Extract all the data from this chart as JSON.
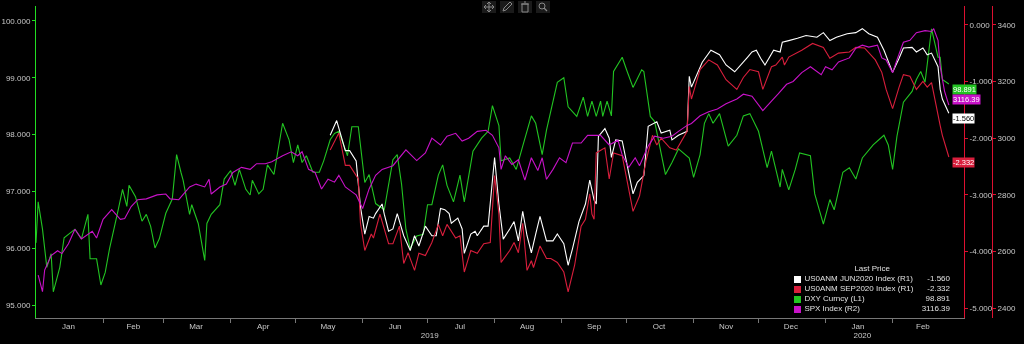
{
  "chart_data": {
    "type": "line",
    "legend": "bottom right",
    "legend_title": "Last Price",
    "grid": false,
    "xlim": [
      "2019-01-01",
      "2020-03-05"
    ],
    "xticks": [
      {
        "value": "2019-01-16",
        "label": "Jan"
      },
      {
        "value": "2019-02-01",
        "label": null
      },
      {
        "value": "2019-02-15",
        "label": "Feb"
      },
      {
        "value": "2019-03-01",
        "label": null
      },
      {
        "value": "2019-03-16",
        "label": "Mar"
      },
      {
        "value": "2019-04-01",
        "label": null
      },
      {
        "value": "2019-04-16",
        "label": "Apr"
      },
      {
        "value": "2019-05-01",
        "label": null
      },
      {
        "value": "2019-05-16",
        "label": "May"
      },
      {
        "value": "2019-06-01",
        "label": null
      },
      {
        "value": "2019-06-16",
        "label": "Jun"
      },
      {
        "value": "2019-07-01",
        "label": null
      },
      {
        "value": "2019-07-16",
        "label": "Jul"
      },
      {
        "value": "2019-08-01",
        "label": null
      },
      {
        "value": "2019-08-16",
        "label": "Aug"
      },
      {
        "value": "2019-09-01",
        "label": null
      },
      {
        "value": "2019-09-16",
        "label": "Sep"
      },
      {
        "value": "2019-10-01",
        "label": null
      },
      {
        "value": "2019-10-16",
        "label": "Oct"
      },
      {
        "value": "2019-11-01",
        "label": null
      },
      {
        "value": "2019-11-16",
        "label": "Nov"
      },
      {
        "value": "2019-12-01",
        "label": null
      },
      {
        "value": "2019-12-16",
        "label": "Dec"
      },
      {
        "value": "2020-01-01",
        "label": null
      },
      {
        "value": "2020-01-16",
        "label": "Jan"
      },
      {
        "value": "2020-02-01",
        "label": null
      },
      {
        "value": "2020-02-15",
        "label": "Feb"
      }
    ],
    "x2lim": [
      "2019-01-01",
      "2020-03-05"
    ],
    "x2ticks": [
      {
        "value": "2019-07-02",
        "label": "2019"
      },
      {
        "value": "2020-01-18",
        "label": "2020"
      }
    ],
    "ylim": [
      94.78,
      100.26
    ],
    "yticks": [
      {
        "value": 95,
        "label": "95.000"
      },
      {
        "value": 96,
        "label": "96.000"
      },
      {
        "value": 97,
        "label": "97.000"
      },
      {
        "value": 98,
        "label": "98.000"
      },
      {
        "value": 99,
        "label": "99.000"
      },
      {
        "value": 100,
        "label": "100.000"
      }
    ],
    "y2lim": [
      -5.17,
      0.33
    ],
    "y2ticks": [
      {
        "value": -5,
        "label": "-5.000"
      },
      {
        "value": -4,
        "label": "-4.000"
      },
      {
        "value": -3,
        "label": "-3.000"
      },
      {
        "value": -2,
        "label": "-2.000"
      },
      {
        "value": -1,
        "label": "-1.000"
      },
      {
        "value": 0,
        "label": "0.000"
      }
    ],
    "y3lim": [
      2366,
      3466
    ],
    "y3ticks": [
      2400,
      2600,
      2800,
      3000,
      3200,
      3400
    ],
    "series": [
      {
        "name": "US0ANM JUN2020 Index (R1)",
        "color": "#ffffff",
        "axis": "y2",
        "x": [
          "2019-05-17",
          "2019-05-20",
          "2019-05-24",
          "2019-05-26",
          "2019-05-29",
          "2019-05-31",
          "2019-06-02",
          "2019-06-04",
          "2019-06-06",
          "2019-06-07",
          "2019-06-10",
          "2019-06-11",
          "2019-06-13",
          "2019-06-15",
          "2019-06-17",
          "2019-06-20",
          "2019-06-23",
          "2019-06-25",
          "2019-06-27",
          "2019-06-30",
          "2019-07-03",
          "2019-07-05",
          "2019-07-07",
          "2019-07-09",
          "2019-07-11",
          "2019-07-12",
          "2019-07-15",
          "2019-07-17",
          "2019-07-18",
          "2019-07-21",
          "2019-07-23",
          "2019-07-24",
          "2019-07-27",
          "2019-07-29",
          "2019-08-01",
          "2019-08-03",
          "2019-08-05",
          "2019-08-08",
          "2019-08-10",
          "2019-08-12",
          "2019-08-14",
          "2019-08-16",
          "2019-08-18",
          "2019-08-20",
          "2019-08-22",
          "2019-08-25",
          "2019-08-28",
          "2019-08-30",
          "2019-09-02",
          "2019-09-04",
          "2019-09-06",
          "2019-09-09",
          "2019-09-12",
          "2019-09-14",
          "2019-09-16",
          "2019-09-17",
          "2019-09-18",
          "2019-09-21",
          "2019-09-23",
          "2019-09-24",
          "2019-09-26",
          "2019-09-29",
          "2019-10-04",
          "2019-10-06",
          "2019-10-09",
          "2019-10-11",
          "2019-10-15",
          "2019-10-17",
          "2019-10-21",
          "2019-10-22",
          "2019-10-25",
          "2019-10-29",
          "2019-10-30",
          "2019-10-31",
          "2019-11-05",
          "2019-11-09",
          "2019-11-13",
          "2019-11-16",
          "2019-11-20",
          "2019-11-26",
          "2019-11-28",
          "2019-11-30",
          "2019-12-02",
          "2019-12-04",
          "2019-12-08",
          "2019-12-11",
          "2019-12-12",
          "2019-12-15",
          "2019-12-19",
          "2019-12-23",
          "2019-12-28",
          "2019-12-31",
          "2020-01-03",
          "2020-01-06",
          "2020-01-11",
          "2020-01-15",
          "2020-01-18",
          "2020-01-21",
          "2020-01-25",
          "2020-01-28",
          "2020-02-01",
          "2020-02-04",
          "2020-02-06",
          "2020-02-10",
          "2020-02-12",
          "2020-02-15",
          "2020-02-17",
          "2020-02-19",
          "2020-02-22",
          "2020-02-23",
          "2020-02-24",
          "2020-02-27"
        ],
        "values": [
          -1.95,
          -1.69,
          -2.22,
          -2.22,
          -2.4,
          -3.21,
          -3.69,
          -3.38,
          -3.41,
          -3.33,
          -3.16,
          -3.34,
          -3.64,
          -3.6,
          -3.33,
          -3.72,
          -3.98,
          -3.72,
          -3.9,
          -3.55,
          -3.72,
          -3.72,
          -3.24,
          -3.26,
          -3.33,
          -3.5,
          -3.41,
          -3.6,
          -4.03,
          -3.69,
          -3.64,
          -3.72,
          -3.55,
          -3.55,
          -2.34,
          -3.16,
          -3.78,
          -3.6,
          -3.47,
          -3.81,
          -3.29,
          -3.72,
          -4.02,
          -3.69,
          -3.38,
          -3.81,
          -3.81,
          -3.69,
          -3.86,
          -4.24,
          -3.95,
          -3.47,
          -3.16,
          -2.74,
          -3.09,
          -3.16,
          -1.97,
          -1.83,
          -2.0,
          -2.34,
          -2.03,
          -2.05,
          -2.98,
          -2.78,
          -2.66,
          -1.79,
          -1.71,
          -1.91,
          -1.86,
          -2.03,
          -1.95,
          -1.88,
          -0.91,
          -1.1,
          -0.66,
          -0.45,
          -0.53,
          -0.71,
          -0.83,
          -0.57,
          -0.48,
          -0.45,
          -0.59,
          -0.71,
          -0.45,
          -0.48,
          -0.31,
          -0.28,
          -0.24,
          -0.19,
          -0.22,
          -0.14,
          -0.28,
          -0.22,
          -0.16,
          -0.14,
          -0.07,
          -0.16,
          -0.22,
          -0.45,
          -0.84,
          -0.59,
          -0.41,
          -0.4,
          -0.48,
          -0.41,
          -0.53,
          -0.5,
          -0.74,
          -1.14,
          -1.31,
          -1.56
        ],
        "value_labels": [
          null,
          null,
          null,
          null,
          null,
          null,
          null,
          null,
          null,
          null,
          null,
          null,
          null,
          null,
          null,
          null,
          null,
          null,
          null,
          null,
          null,
          null,
          null,
          null,
          null,
          null,
          null,
          null,
          null,
          null,
          null,
          null,
          null,
          null,
          null,
          null,
          null,
          null,
          null,
          null,
          null,
          null,
          null,
          null,
          null,
          null,
          null,
          null,
          null,
          null,
          null,
          null,
          null,
          null,
          null,
          null,
          null,
          null,
          null,
          null,
          null,
          null,
          null,
          null,
          null,
          null,
          null,
          null,
          null,
          null,
          null,
          null,
          null,
          null,
          null,
          null,
          null,
          null,
          null,
          null,
          null,
          null,
          null,
          null,
          null,
          null,
          null,
          null,
          null,
          null,
          null,
          null,
          null,
          null,
          null,
          null,
          null,
          null,
          null,
          null,
          null,
          null,
          null,
          null,
          null,
          null,
          null,
          null,
          null,
          null,
          null,
          "-1.560"
        ]
      },
      {
        "name": "US0ANM SEP2020 Index (R1)",
        "color": "#d81e3c",
        "axis": "y2",
        "x": [
          "2019-05-17",
          "2019-05-21",
          "2019-05-24",
          "2019-05-26",
          "2019-05-30",
          "2019-05-31",
          "2019-06-02",
          "2019-06-05",
          "2019-06-06",
          "2019-06-09",
          "2019-06-13",
          "2019-06-15",
          "2019-06-18",
          "2019-06-20",
          "2019-06-22",
          "2019-06-25",
          "2019-06-27",
          "2019-06-30",
          "2019-07-03",
          "2019-07-06",
          "2019-07-08",
          "2019-07-10",
          "2019-07-14",
          "2019-07-16",
          "2019-07-18",
          "2019-07-21",
          "2019-07-24",
          "2019-07-27",
          "2019-07-30",
          "2019-08-01",
          "2019-08-03",
          "2019-08-04",
          "2019-08-08",
          "2019-08-10",
          "2019-08-12",
          "2019-08-14",
          "2019-08-16",
          "2019-08-18",
          "2019-08-19",
          "2019-08-22",
          "2019-08-25",
          "2019-08-27",
          "2019-08-30",
          "2019-09-02",
          "2019-09-04",
          "2019-09-07",
          "2019-09-10",
          "2019-09-12",
          "2019-09-14",
          "2019-09-15",
          "2019-09-16",
          "2019-09-17",
          "2019-09-21",
          "2019-09-23",
          "2019-09-25",
          "2019-09-29",
          "2019-10-04",
          "2019-10-07",
          "2019-10-10",
          "2019-10-13",
          "2019-10-15",
          "2019-10-17",
          "2019-10-21",
          "2019-10-24",
          "2019-10-29",
          "2019-10-30",
          "2019-10-31",
          "2019-11-04",
          "2019-11-08",
          "2019-11-12",
          "2019-11-16",
          "2019-11-21",
          "2019-11-24",
          "2019-11-27",
          "2019-12-01",
          "2019-12-03",
          "2019-12-07",
          "2019-12-09",
          "2019-12-12",
          "2019-12-13",
          "2019-12-15",
          "2019-12-21",
          "2019-12-26",
          "2019-12-31",
          "2020-01-03",
          "2020-01-07",
          "2020-01-12",
          "2020-01-15",
          "2020-01-19",
          "2020-01-24",
          "2020-01-27",
          "2020-01-29",
          "2020-02-01",
          "2020-02-04",
          "2020-02-06",
          "2020-02-09",
          "2020-02-12",
          "2020-02-15",
          "2020-02-17",
          "2020-02-19",
          "2020-02-23",
          "2020-02-24",
          "2020-02-27"
        ],
        "values": [
          -2.21,
          -1.91,
          -2.48,
          -2.48,
          -2.72,
          -3.5,
          -3.98,
          -3.69,
          -3.76,
          -3.34,
          -3.86,
          -3.86,
          -3.55,
          -4.21,
          -4.02,
          -4.33,
          -4.03,
          -4.07,
          -3.84,
          -3.52,
          -3.72,
          -3.52,
          -3.76,
          -3.72,
          -4.36,
          -3.98,
          -4.03,
          -3.86,
          -3.84,
          -2.66,
          -3.34,
          -4.19,
          -3.98,
          -3.84,
          -4.02,
          -3.5,
          -4.33,
          -4.16,
          -4.28,
          -3.9,
          -4.12,
          -4.12,
          -4.19,
          -4.36,
          -4.71,
          -4.24,
          -3.55,
          -3.43,
          -2.98,
          -3.34,
          -3.43,
          -2.26,
          -2.17,
          -2.72,
          -2.26,
          -2.31,
          -3.29,
          -3.02,
          -2.4,
          -1.95,
          -2.12,
          -2.0,
          -2.17,
          -2.21,
          -1.88,
          -1.09,
          -1.31,
          -0.79,
          -0.62,
          -0.71,
          -0.97,
          -1.14,
          -0.93,
          -0.79,
          -0.83,
          -1.14,
          -0.74,
          -0.71,
          -0.57,
          -0.71,
          -0.57,
          -0.45,
          -0.33,
          -0.4,
          -0.59,
          -0.5,
          -0.48,
          -0.4,
          -0.41,
          -0.62,
          -0.84,
          -1.14,
          -1.48,
          -1.1,
          -0.88,
          -0.91,
          -1.14,
          -1.0,
          -1.1,
          -1.02,
          -1.78,
          -1.95,
          -2.332
        ],
        "value_labels": [
          null,
          null,
          null,
          null,
          null,
          null,
          null,
          null,
          null,
          null,
          null,
          null,
          null,
          null,
          null,
          null,
          null,
          null,
          null,
          null,
          null,
          null,
          null,
          null,
          null,
          null,
          null,
          null,
          null,
          null,
          null,
          null,
          null,
          null,
          null,
          null,
          null,
          null,
          null,
          null,
          null,
          null,
          null,
          null,
          null,
          null,
          null,
          null,
          null,
          null,
          null,
          null,
          null,
          null,
          null,
          null,
          null,
          null,
          null,
          null,
          null,
          null,
          null,
          null,
          null,
          null,
          null,
          null,
          null,
          null,
          null,
          null,
          null,
          null,
          null,
          null,
          null,
          null,
          null,
          null,
          null,
          null,
          null,
          null,
          null,
          null,
          null,
          null,
          null,
          null,
          null,
          null,
          null,
          null,
          null,
          null,
          null,
          null,
          null,
          null,
          null,
          null,
          "-2.332"
        ]
      },
      {
        "name": "DXY Curncy (L1)",
        "color": "#22c422",
        "axis": "y",
        "x": [
          "2019-01-01",
          "2019-01-02",
          "2019-01-04",
          "2019-01-06",
          "2019-01-08",
          "2019-01-09",
          "2019-01-12",
          "2019-01-14",
          "2019-01-19",
          "2019-01-22",
          "2019-01-25",
          "2019-01-26",
          "2019-01-29",
          "2019-01-31",
          "2019-02-02",
          "2019-02-04",
          "2019-02-08",
          "2019-02-10",
          "2019-02-12",
          "2019-02-13",
          "2019-02-16",
          "2019-02-19",
          "2019-02-21",
          "2019-02-23",
          "2019-02-25",
          "2019-02-27",
          "2019-03-02",
          "2019-03-05",
          "2019-03-07",
          "2019-03-09",
          "2019-03-10",
          "2019-03-13",
          "2019-03-14",
          "2019-03-17",
          "2019-03-20",
          "2019-03-21",
          "2019-03-23",
          "2019-03-27",
          "2019-03-29",
          "2019-04-01",
          "2019-04-03",
          "2019-04-05",
          "2019-04-08",
          "2019-04-10",
          "2019-04-11",
          "2019-04-14",
          "2019-04-16",
          "2019-04-18",
          "2019-04-21",
          "2019-04-25",
          "2019-04-28",
          "2019-04-30",
          "2019-05-02",
          "2019-05-04",
          "2019-05-06",
          "2019-05-09",
          "2019-05-12",
          "2019-05-14",
          "2019-05-17",
          "2019-05-19",
          "2019-05-21",
          "2019-05-25",
          "2019-05-27",
          "2019-05-30",
          "2019-06-02",
          "2019-06-04",
          "2019-06-07",
          "2019-06-11",
          "2019-06-15",
          "2019-06-17",
          "2019-06-19",
          "2019-06-21",
          "2019-06-23",
          "2019-06-26",
          "2019-06-29",
          "2019-07-01",
          "2019-07-03",
          "2019-07-06",
          "2019-07-08",
          "2019-07-10",
          "2019-07-13",
          "2019-07-16",
          "2019-07-18",
          "2019-07-22",
          "2019-07-26",
          "2019-07-29",
          "2019-07-31",
          "2019-08-03",
          "2019-08-04",
          "2019-08-08",
          "2019-08-11",
          "2019-08-14",
          "2019-08-18",
          "2019-08-20",
          "2019-08-23",
          "2019-08-25",
          "2019-08-30",
          "2019-09-02",
          "2019-09-04",
          "2019-09-08",
          "2019-09-11",
          "2019-09-13",
          "2019-09-15",
          "2019-09-17",
          "2019-09-19",
          "2019-09-20",
          "2019-09-22",
          "2019-09-24",
          "2019-09-25",
          "2019-09-29",
          "2019-10-01",
          "2019-10-04",
          "2019-10-08",
          "2019-10-09",
          "2019-10-12",
          "2019-10-14",
          "2019-10-19",
          "2019-10-22",
          "2019-10-25",
          "2019-10-30",
          "2019-11-01",
          "2019-11-04",
          "2019-11-06",
          "2019-11-08",
          "2019-11-10",
          "2019-11-13",
          "2019-11-17",
          "2019-11-21",
          "2019-11-24",
          "2019-11-27",
          "2019-12-01",
          "2019-12-05",
          "2019-12-07",
          "2019-12-11",
          "2019-12-12",
          "2019-12-15",
          "2019-12-18",
          "2019-12-20",
          "2019-12-25",
          "2019-12-27",
          "2019-12-31",
          "2020-01-03",
          "2020-01-05",
          "2020-01-09",
          "2020-01-12",
          "2020-01-15",
          "2020-01-18",
          "2020-01-23",
          "2020-01-28",
          "2020-01-30",
          "2020-02-01",
          "2020-02-03",
          "2020-02-06",
          "2020-02-10",
          "2020-02-12",
          "2020-02-14",
          "2020-02-16",
          "2020-02-19",
          "2020-02-22",
          "2020-02-23",
          "2020-02-24",
          "2020-02-27"
        ],
        "values": [
          96.1,
          96.82,
          96.34,
          95.67,
          95.91,
          95.24,
          95.67,
          96.19,
          96.34,
          96.17,
          96.6,
          95.82,
          95.82,
          95.36,
          95.58,
          96.0,
          96.68,
          97.04,
          96.74,
          97.11,
          96.91,
          96.48,
          96.6,
          96.39,
          96.01,
          96.17,
          96.62,
          96.87,
          97.65,
          97.34,
          97.2,
          96.6,
          96.77,
          96.44,
          95.79,
          96.44,
          96.6,
          96.77,
          97.22,
          97.37,
          97.11,
          97.39,
          97.04,
          96.94,
          97.2,
          96.96,
          97.04,
          97.47,
          97.3,
          98.2,
          97.91,
          97.51,
          97.82,
          97.51,
          97.63,
          97.34,
          97.34,
          97.54,
          97.91,
          98.02,
          98.06,
          97.63,
          98.14,
          98.14,
          97.16,
          97.3,
          96.79,
          96.68,
          97.56,
          97.65,
          97.13,
          96.34,
          96.0,
          96.22,
          96.25,
          96.77,
          96.77,
          97.29,
          97.47,
          97.11,
          96.82,
          97.29,
          96.82,
          97.71,
          97.94,
          98.06,
          98.51,
          98.16,
          97.54,
          97.59,
          97.39,
          97.8,
          98.33,
          98.2,
          97.65,
          98.08,
          98.92,
          99.0,
          98.49,
          98.32,
          98.66,
          98.32,
          98.59,
          98.32,
          98.59,
          98.32,
          98.59,
          98.33,
          99.11,
          99.36,
          99.14,
          98.83,
          99.14,
          99.11,
          98.32,
          98.23,
          97.3,
          97.51,
          97.75,
          97.59,
          97.25,
          97.65,
          98.2,
          98.37,
          98.2,
          98.37,
          97.8,
          97.99,
          98.33,
          98.37,
          98.06,
          97.42,
          97.71,
          97.08,
          97.39,
          97.03,
          97.39,
          97.68,
          97.63,
          96.96,
          96.43,
          96.86,
          96.68,
          97.34,
          97.42,
          97.22,
          97.59,
          97.82,
          97.99,
          97.82,
          97.39,
          97.97,
          98.57,
          98.76,
          98.97,
          99.11,
          98.92,
          99.86,
          99.36,
          99.36,
          98.97,
          98.891
        ],
        "value_labels": [
          null,
          null,
          null,
          null,
          null,
          null,
          null,
          null,
          null,
          null,
          null,
          null,
          null,
          null,
          null,
          null,
          null,
          null,
          null,
          null,
          null,
          null,
          null,
          null,
          null,
          null,
          null,
          null,
          null,
          null,
          null,
          null,
          null,
          null,
          null,
          null,
          null,
          null,
          null,
          null,
          null,
          null,
          null,
          null,
          null,
          null,
          null,
          null,
          null,
          null,
          null,
          null,
          null,
          null,
          null,
          null,
          null,
          null,
          null,
          null,
          null,
          null,
          null,
          null,
          null,
          null,
          null,
          null,
          null,
          null,
          null,
          null,
          null,
          null,
          null,
          null,
          null,
          null,
          null,
          null,
          null,
          null,
          null,
          null,
          null,
          null,
          null,
          null,
          null,
          null,
          null,
          null,
          null,
          null,
          null,
          null,
          null,
          null,
          null,
          null,
          null,
          null,
          null,
          null,
          null,
          null,
          null,
          null,
          null,
          null,
          null,
          null,
          null,
          null,
          null,
          null,
          null,
          null,
          null,
          null,
          null,
          null,
          null,
          null,
          null,
          null,
          null,
          null,
          null,
          null,
          null,
          null,
          null,
          null,
          null,
          null,
          null,
          null,
          null,
          null,
          null,
          null,
          null,
          null,
          null,
          null,
          null,
          null,
          null,
          null,
          null,
          null,
          null,
          null,
          null,
          null,
          null,
          null,
          null,
          null,
          null,
          "98.891"
        ]
      },
      {
        "name": "SPX Index (R2)",
        "color": "#c812c8",
        "axis": "y3",
        "x": [
          "2019-01-02",
          "2019-01-04",
          "2019-01-05",
          "2019-01-08",
          "2019-01-11",
          "2019-01-13",
          "2019-01-16",
          "2019-01-19",
          "2019-01-22",
          "2019-01-27",
          "2019-01-29",
          "2019-02-01",
          "2019-02-05",
          "2019-02-09",
          "2019-02-11",
          "2019-02-14",
          "2019-02-17",
          "2019-02-21",
          "2019-02-26",
          "2019-03-02",
          "2019-03-04",
          "2019-03-08",
          "2019-03-13",
          "2019-03-16",
          "2019-03-20",
          "2019-03-22",
          "2019-03-23",
          "2019-03-27",
          "2019-03-30",
          "2019-04-02",
          "2019-04-06",
          "2019-04-10",
          "2019-04-13",
          "2019-04-17",
          "2019-04-20",
          "2019-04-25",
          "2019-04-29",
          "2019-05-02",
          "2019-05-04",
          "2019-05-07",
          "2019-05-10",
          "2019-05-13",
          "2019-05-16",
          "2019-05-19",
          "2019-05-21",
          "2019-05-24",
          "2019-05-26",
          "2019-05-29",
          "2019-06-01",
          "2019-06-04",
          "2019-06-07",
          "2019-06-10",
          "2019-06-15",
          "2019-06-21",
          "2019-06-26",
          "2019-06-30",
          "2019-07-03",
          "2019-07-07",
          "2019-07-10",
          "2019-07-14",
          "2019-07-17",
          "2019-07-20",
          "2019-07-24",
          "2019-07-28",
          "2019-07-31",
          "2019-08-03",
          "2019-08-04",
          "2019-08-06",
          "2019-08-09",
          "2019-08-12",
          "2019-08-15",
          "2019-08-18",
          "2019-08-21",
          "2019-08-23",
          "2019-08-25",
          "2019-08-28",
          "2019-08-31",
          "2019-09-03",
          "2019-09-06",
          "2019-09-10",
          "2019-09-13",
          "2019-09-19",
          "2019-09-23",
          "2019-09-27",
          "2019-09-29",
          "2019-10-02",
          "2019-10-05",
          "2019-10-07",
          "2019-10-11",
          "2019-10-14",
          "2019-10-18",
          "2019-10-22",
          "2019-10-25",
          "2019-10-29",
          "2019-10-31",
          "2019-11-04",
          "2019-11-08",
          "2019-11-12",
          "2019-11-16",
          "2019-11-21",
          "2019-11-24",
          "2019-11-28",
          "2019-12-03",
          "2019-12-07",
          "2019-12-10",
          "2019-12-14",
          "2019-12-17",
          "2019-12-21",
          "2019-12-25",
          "2019-12-30",
          "2020-01-01",
          "2020-01-04",
          "2020-01-07",
          "2020-01-12",
          "2020-01-15",
          "2020-01-18",
          "2020-01-21",
          "2020-01-25",
          "2020-01-27",
          "2020-01-29",
          "2020-02-01",
          "2020-02-03",
          "2020-02-06",
          "2020-02-09",
          "2020-02-12",
          "2020-02-16",
          "2020-02-19",
          "2020-02-20",
          "2020-02-22",
          "2020-02-23",
          "2020-02-25",
          "2020-02-27"
        ],
        "values": [
          2517,
          2459,
          2535,
          2586,
          2603,
          2593,
          2628,
          2679,
          2645,
          2672,
          2648,
          2714,
          2748,
          2714,
          2717,
          2759,
          2783,
          2786,
          2800,
          2803,
          2786,
          2783,
          2828,
          2838,
          2828,
          2855,
          2803,
          2828,
          2838,
          2879,
          2897,
          2890,
          2910,
          2910,
          2917,
          2938,
          2952,
          2938,
          2952,
          2890,
          2879,
          2821,
          2855,
          2845,
          2869,
          2828,
          2817,
          2800,
          2752,
          2821,
          2869,
          2890,
          2903,
          2959,
          2921,
          2948,
          3000,
          2976,
          3007,
          3017,
          2990,
          3000,
          3024,
          3028,
          3010,
          2966,
          2890,
          2938,
          2907,
          2924,
          2852,
          2931,
          2886,
          2931,
          2855,
          2890,
          2931,
          2914,
          2983,
          2983,
          3010,
          3010,
          2976,
          2993,
          2941,
          2897,
          2931,
          2903,
          2972,
          3007,
          3000,
          3007,
          3024,
          3045,
          3052,
          3079,
          3093,
          3103,
          3121,
          3138,
          3155,
          3148,
          3097,
          3131,
          3155,
          3190,
          3200,
          3231,
          3252,
          3224,
          3252,
          3241,
          3269,
          3283,
          3317,
          3328,
          3321,
          3328,
          3283,
          3276,
          3231,
          3276,
          3338,
          3345,
          3372,
          3379,
          3376,
          3386,
          3345,
          3252,
          3166,
          3116.39
        ],
        "value_labels": [
          null,
          null,
          null,
          null,
          null,
          null,
          null,
          null,
          null,
          null,
          null,
          null,
          null,
          null,
          null,
          null,
          null,
          null,
          null,
          null,
          null,
          null,
          null,
          null,
          null,
          null,
          null,
          null,
          null,
          null,
          null,
          null,
          null,
          null,
          null,
          null,
          null,
          null,
          null,
          null,
          null,
          null,
          null,
          null,
          null,
          null,
          null,
          null,
          null,
          null,
          null,
          null,
          null,
          null,
          null,
          null,
          null,
          null,
          null,
          null,
          null,
          null,
          null,
          null,
          null,
          null,
          null,
          null,
          null,
          null,
          null,
          null,
          null,
          null,
          null,
          null,
          null,
          null,
          null,
          null,
          null,
          null,
          null,
          null,
          null,
          null,
          null,
          null,
          null,
          null,
          null,
          null,
          null,
          null,
          null,
          null,
          null,
          null,
          null,
          null,
          null,
          null,
          null,
          null,
          null,
          null,
          null,
          null,
          null,
          null,
          null,
          null,
          null,
          null,
          null,
          null,
          null,
          null,
          null,
          null,
          null,
          null,
          null,
          null,
          null,
          null,
          null,
          null,
          null,
          null,
          null,
          "3116.39"
        ]
      }
    ]
  }
}
